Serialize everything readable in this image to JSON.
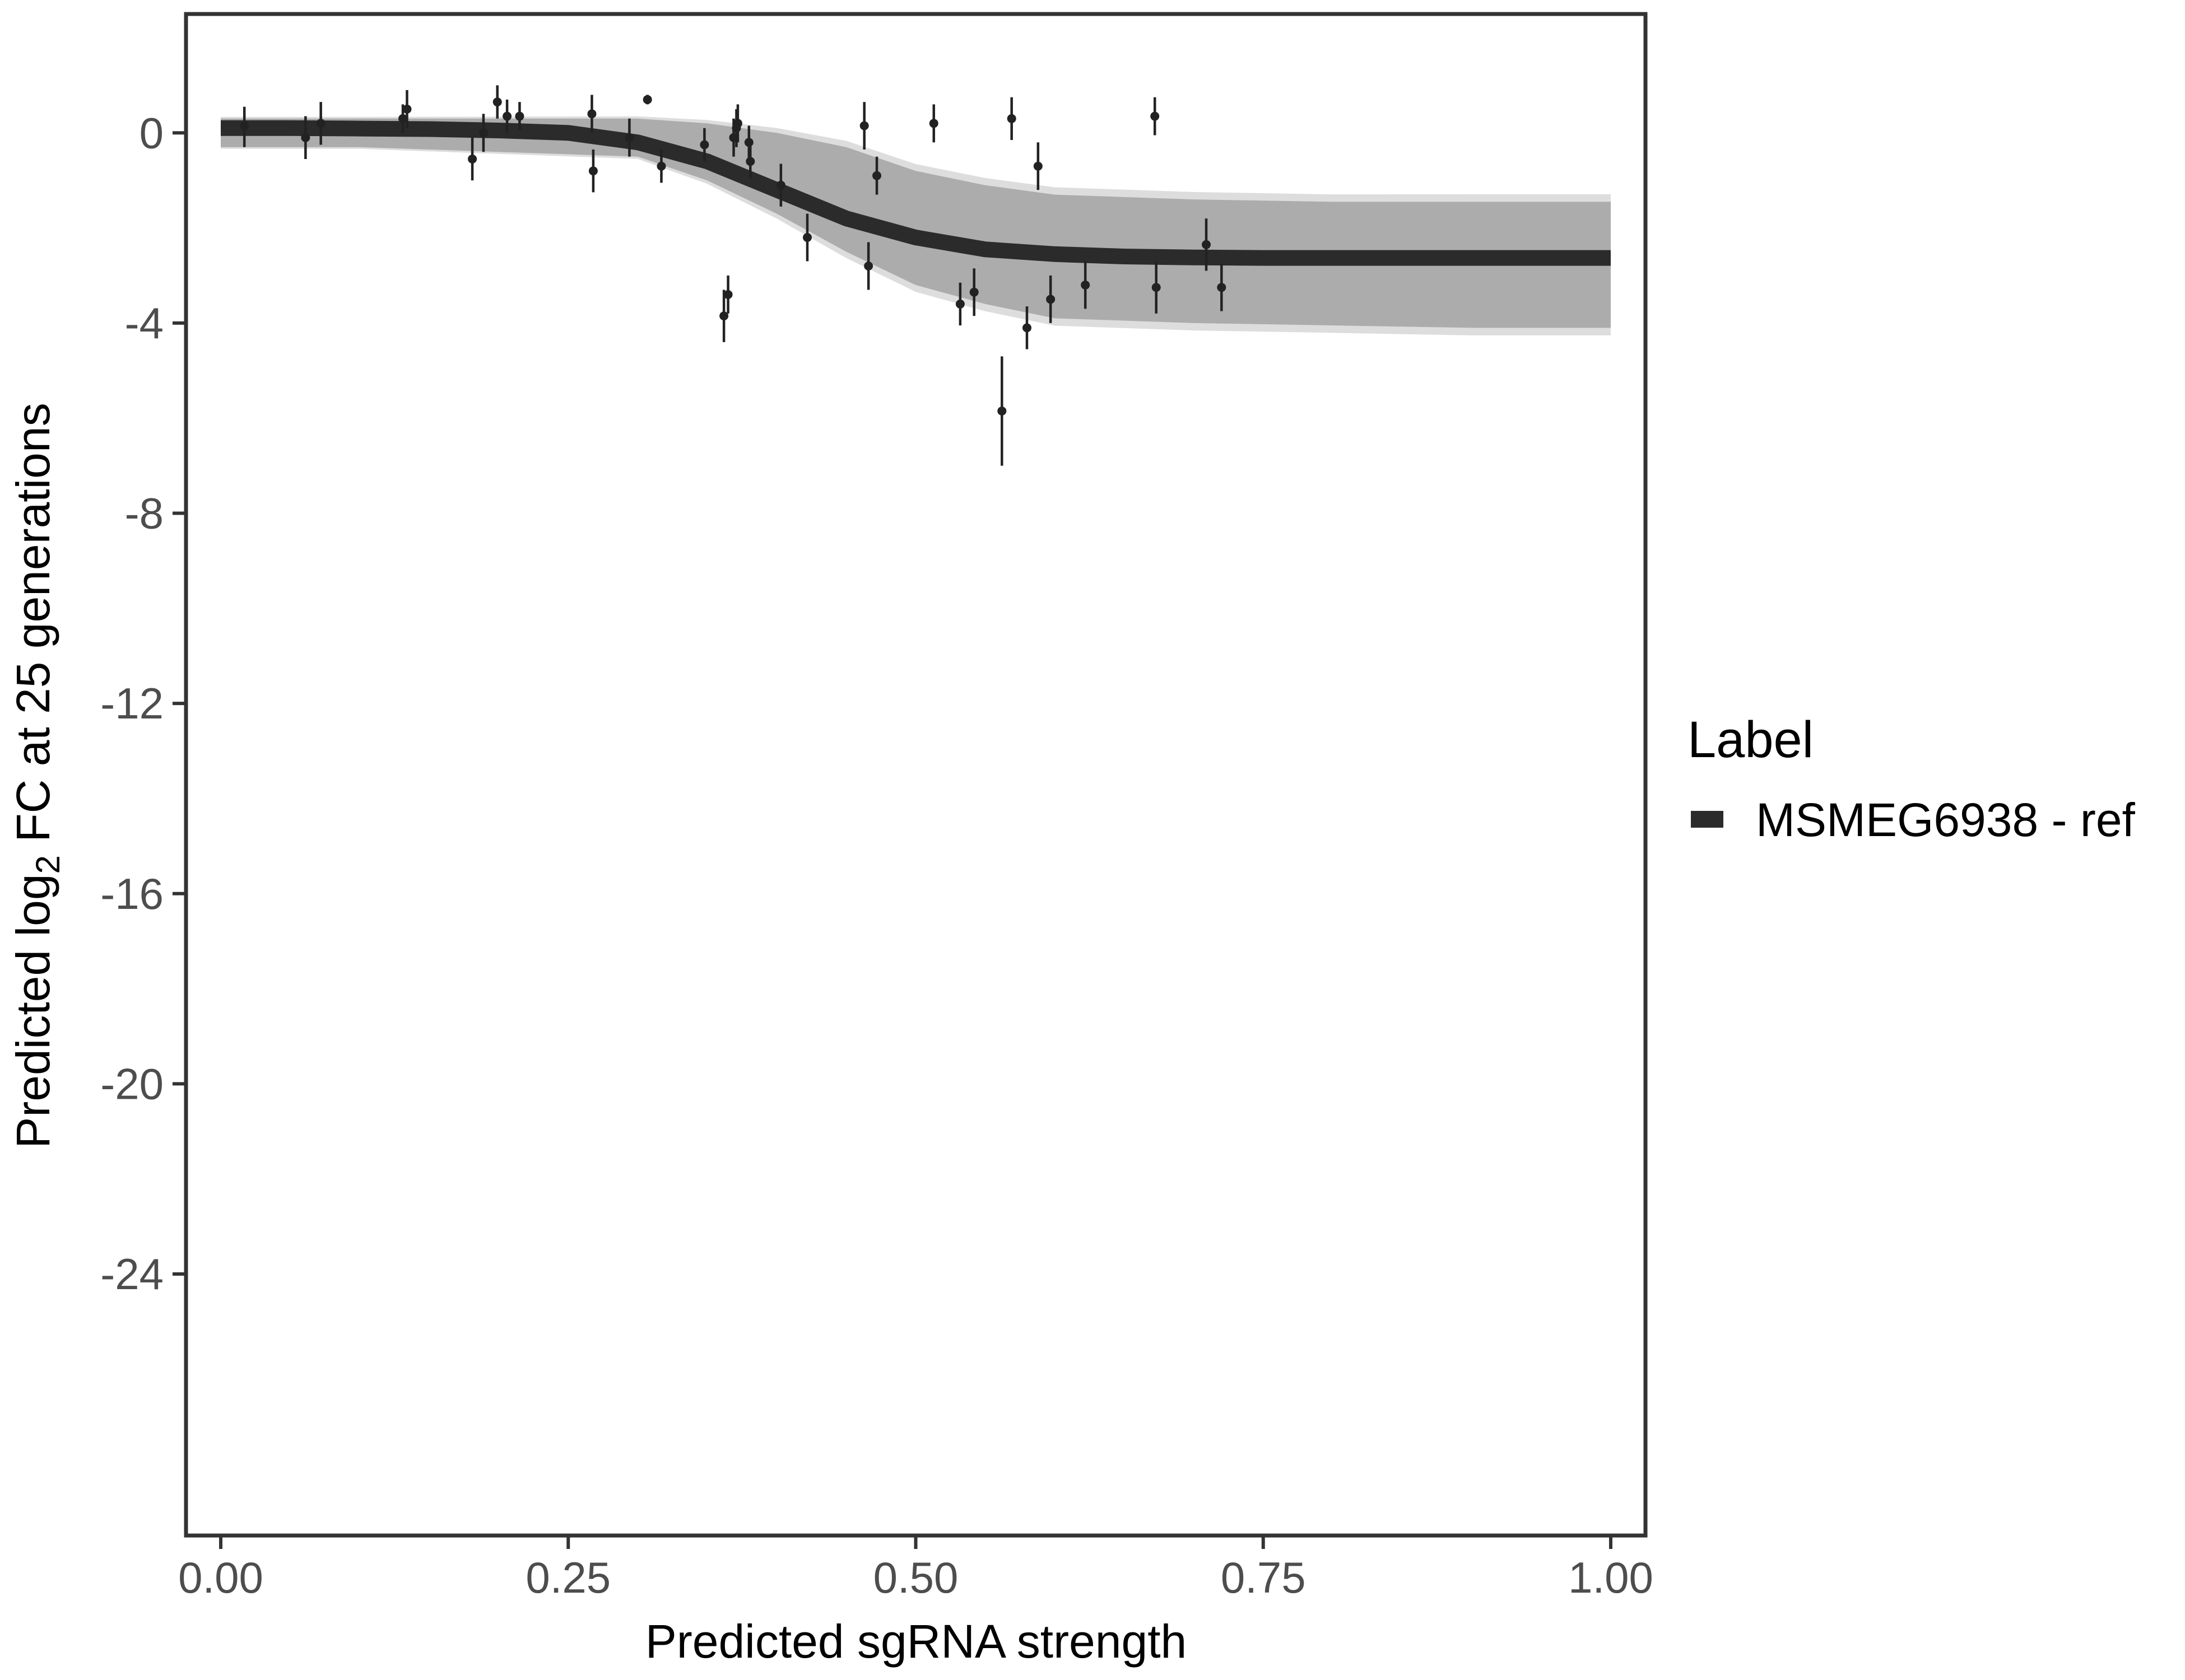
{
  "chart_data": {
    "type": "scatter",
    "title": "",
    "xlabel": "Predicted sgRNA strength",
    "ylabel_prefix": "Predicted  log",
    "ylabel_subscript": "2",
    "ylabel_suffix": " FC at 25 generations",
    "xlim": [
      -0.025,
      1.025
    ],
    "ylim": [
      -29.5,
      2.5
    ],
    "x_ticks": [
      0,
      0.25,
      0.5,
      0.75,
      1
    ],
    "x_tick_labels": [
      "0.00",
      "0.25",
      "0.50",
      "0.75",
      "1.00"
    ],
    "y_ticks": [
      0,
      -4,
      -8,
      -12,
      -16,
      -20,
      -24
    ],
    "y_tick_labels": [
      "0",
      "-4",
      "-8",
      "-12",
      "-16",
      "-20",
      "-24"
    ],
    "grid": false,
    "legend": {
      "title": "Label",
      "position": "right",
      "entries": [
        {
          "label": "MSMEG6938 - ref",
          "color": "#2b2b2b"
        }
      ]
    },
    "fit_curve": {
      "name": "MSMEG6938 - ref",
      "color": "#2b2b2b",
      "x": [
        0,
        0.05,
        0.1,
        0.15,
        0.2,
        0.25,
        0.3,
        0.35,
        0.4,
        0.45,
        0.5,
        0.55,
        0.6,
        0.65,
        0.7,
        0.75,
        0.8,
        0.85,
        0.9,
        0.95,
        1.0
      ],
      "y": [
        0.1,
        0.1,
        0.09,
        0.08,
        0.05,
        0.0,
        -0.2,
        -0.6,
        -1.2,
        -1.8,
        -2.2,
        -2.45,
        -2.55,
        -2.6,
        -2.62,
        -2.63,
        -2.63,
        -2.63,
        -2.63,
        -2.63,
        -2.63
      ]
    },
    "ribbon": {
      "color": "#a6a6a6",
      "x": [
        0,
        0.1,
        0.2,
        0.3,
        0.35,
        0.4,
        0.45,
        0.5,
        0.55,
        0.6,
        0.7,
        0.8,
        0.9,
        1.0
      ],
      "upper": [
        0.3,
        0.3,
        0.3,
        0.3,
        0.2,
        0.0,
        -0.3,
        -0.8,
        -1.1,
        -1.3,
        -1.4,
        -1.45,
        -1.45,
        -1.45
      ],
      "lower": [
        -0.3,
        -0.3,
        -0.4,
        -0.5,
        -1.0,
        -1.7,
        -2.5,
        -3.2,
        -3.6,
        -3.9,
        -4.0,
        -4.05,
        -4.1,
        -4.1
      ]
    },
    "points": [
      {
        "x": 0.017,
        "y": 0.15,
        "lo": -0.3,
        "hi": 0.55
      },
      {
        "x": 0.061,
        "y": -0.1,
        "lo": -0.55,
        "hi": 0.35
      },
      {
        "x": 0.072,
        "y": 0.2,
        "lo": -0.25,
        "hi": 0.65
      },
      {
        "x": 0.131,
        "y": 0.3,
        "lo": 0.0,
        "hi": 0.6
      },
      {
        "x": 0.134,
        "y": 0.5,
        "lo": 0.1,
        "hi": 0.9
      },
      {
        "x": 0.181,
        "y": -0.55,
        "lo": -1.0,
        "hi": -0.1
      },
      {
        "x": 0.189,
        "y": 0.0,
        "lo": -0.4,
        "hi": 0.4
      },
      {
        "x": 0.199,
        "y": 0.65,
        "lo": 0.3,
        "hi": 1.0
      },
      {
        "x": 0.206,
        "y": 0.35,
        "lo": 0.0,
        "hi": 0.7
      },
      {
        "x": 0.215,
        "y": 0.35,
        "lo": 0.05,
        "hi": 0.65
      },
      {
        "x": 0.267,
        "y": 0.4,
        "lo": 0.0,
        "hi": 0.8
      },
      {
        "x": 0.268,
        "y": -0.8,
        "lo": -1.25,
        "hi": -0.35
      },
      {
        "x": 0.294,
        "y": -0.1,
        "lo": -0.5,
        "hi": 0.3
      },
      {
        "x": 0.307,
        "y": 0.7,
        "lo": 0.6,
        "hi": 0.8
      },
      {
        "x": 0.317,
        "y": -0.7,
        "lo": -1.05,
        "hi": -0.35
      },
      {
        "x": 0.348,
        "y": -0.25,
        "lo": -0.6,
        "hi": 0.1
      },
      {
        "x": 0.362,
        "y": -3.85,
        "lo": -4.4,
        "hi": -3.3
      },
      {
        "x": 0.365,
        "y": -3.4,
        "lo": -3.8,
        "hi": -3.0
      },
      {
        "x": 0.369,
        "y": -0.1,
        "lo": -0.5,
        "hi": 0.3
      },
      {
        "x": 0.371,
        "y": 0.1,
        "lo": -0.3,
        "hi": 0.5
      },
      {
        "x": 0.372,
        "y": 0.2,
        "lo": -0.2,
        "hi": 0.6
      },
      {
        "x": 0.38,
        "y": -0.2,
        "lo": -0.55,
        "hi": 0.15
      },
      {
        "x": 0.381,
        "y": -0.6,
        "lo": -0.95,
        "hi": -0.25
      },
      {
        "x": 0.403,
        "y": -1.1,
        "lo": -1.55,
        "hi": -0.65
      },
      {
        "x": 0.422,
        "y": -2.2,
        "lo": -2.7,
        "hi": -1.7
      },
      {
        "x": 0.463,
        "y": 0.15,
        "lo": -0.35,
        "hi": 0.65
      },
      {
        "x": 0.466,
        "y": -2.8,
        "lo": -3.3,
        "hi": -2.3
      },
      {
        "x": 0.472,
        "y": -0.9,
        "lo": -1.3,
        "hi": -0.5
      },
      {
        "x": 0.513,
        "y": 0.2,
        "lo": -0.2,
        "hi": 0.6
      },
      {
        "x": 0.532,
        "y": -3.6,
        "lo": -4.05,
        "hi": -3.15
      },
      {
        "x": 0.542,
        "y": -3.35,
        "lo": -3.85,
        "hi": -2.85
      },
      {
        "x": 0.562,
        "y": -5.85,
        "lo": -7.0,
        "hi": -4.7
      },
      {
        "x": 0.569,
        "y": 0.3,
        "lo": -0.15,
        "hi": 0.75
      },
      {
        "x": 0.58,
        "y": -4.1,
        "lo": -4.55,
        "hi": -3.65
      },
      {
        "x": 0.588,
        "y": -0.7,
        "lo": -1.2,
        "hi": -0.2
      },
      {
        "x": 0.597,
        "y": -3.5,
        "lo": -4.0,
        "hi": -3.0
      },
      {
        "x": 0.622,
        "y": -3.2,
        "lo": -3.7,
        "hi": -2.7
      },
      {
        "x": 0.672,
        "y": 0.35,
        "lo": -0.05,
        "hi": 0.75
      },
      {
        "x": 0.673,
        "y": -3.25,
        "lo": -3.8,
        "hi": -2.7
      },
      {
        "x": 0.709,
        "y": -2.35,
        "lo": -2.9,
        "hi": -1.8
      },
      {
        "x": 0.72,
        "y": -3.25,
        "lo": -3.75,
        "hi": -2.75
      }
    ]
  }
}
